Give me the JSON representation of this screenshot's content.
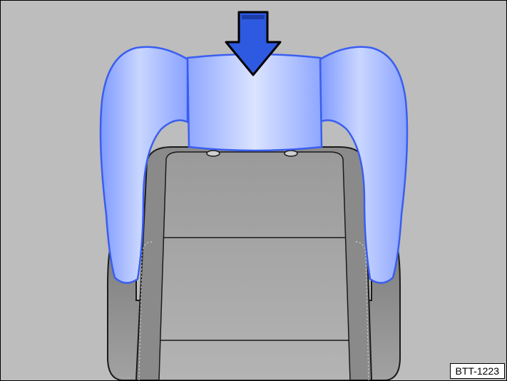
{
  "figure": {
    "reference_code": "BTT-1223",
    "icons": [
      "seat-backrest-icon",
      "head-restraint-icon",
      "press-down-arrow-icon"
    ],
    "colors": {
      "background": "#bdbdbd",
      "seat_fill": "#8e8e8e",
      "seat_panel": "#a9a9a9",
      "seat_outline": "#1a1a1a",
      "head_restraint_fill": "#b8c8ff",
      "head_restraint_outline": "#3a5ef0",
      "arrow_fill": "#2d5ae0",
      "arrow_outline": "#000000"
    }
  }
}
